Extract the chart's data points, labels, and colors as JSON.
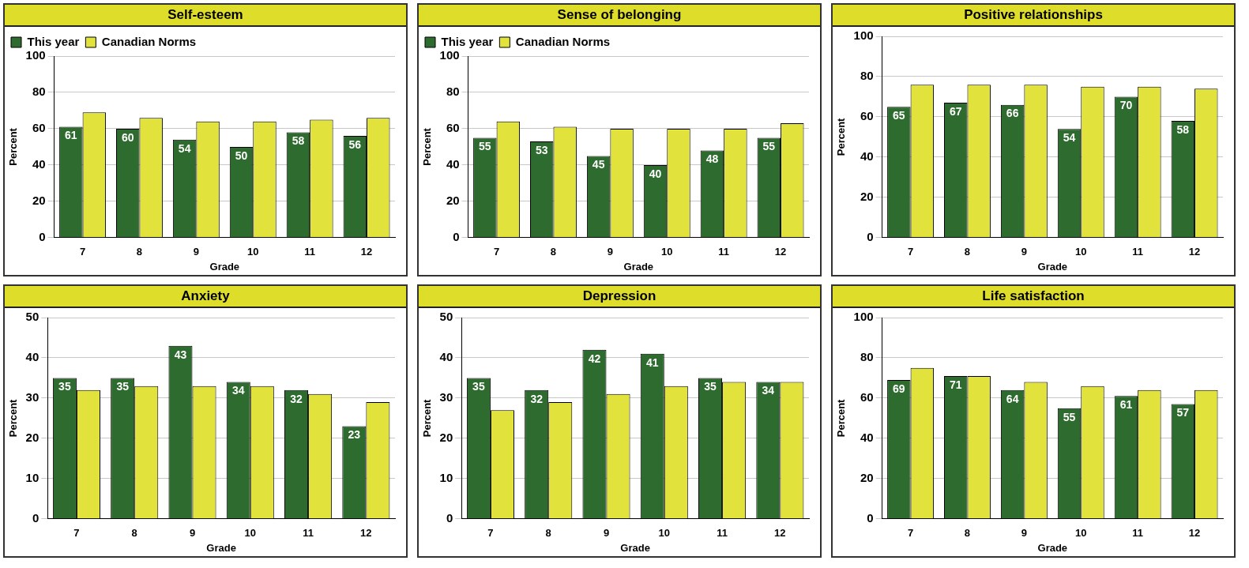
{
  "chart_data": [
    {
      "type": "bar",
      "title": "Self-esteem",
      "xlabel": "Grade",
      "ylabel": "Percent",
      "categories": [
        "7",
        "8",
        "9",
        "10",
        "11",
        "12"
      ],
      "ylim": [
        0,
        100
      ],
      "yticks": [
        0,
        20,
        40,
        60,
        80,
        100
      ],
      "grid": "y",
      "legend": "top",
      "series": [
        {
          "name": "This year",
          "color": "#2e6b2e",
          "values": [
            61,
            60,
            54,
            50,
            58,
            56
          ],
          "value_labels": [
            "61",
            "60",
            "54",
            "50",
            "58",
            "56"
          ]
        },
        {
          "name": "Canadian Norms",
          "color": "#e2e23c",
          "values": [
            69,
            66,
            64,
            64,
            65,
            66
          ]
        }
      ]
    },
    {
      "type": "bar",
      "title": "Sense of belonging",
      "xlabel": "Grade",
      "ylabel": "Percent",
      "categories": [
        "7",
        "8",
        "9",
        "10",
        "11",
        "12"
      ],
      "ylim": [
        0,
        100
      ],
      "yticks": [
        0,
        20,
        40,
        60,
        80,
        100
      ],
      "grid": "y",
      "legend": "top",
      "series": [
        {
          "name": "This year",
          "color": "#2e6b2e",
          "values": [
            55,
            53,
            45,
            40,
            48,
            55
          ],
          "value_labels": [
            "55",
            "53",
            "45",
            "40",
            "48",
            "55"
          ]
        },
        {
          "name": "Canadian Norms",
          "color": "#e2e23c",
          "values": [
            64,
            61,
            60,
            60,
            60,
            63
          ]
        }
      ]
    },
    {
      "type": "bar",
      "title": "Positive relationships",
      "xlabel": "Grade",
      "ylabel": "Percent",
      "categories": [
        "7",
        "8",
        "9",
        "10",
        "11",
        "12"
      ],
      "ylim": [
        0,
        100
      ],
      "yticks": [
        0,
        20,
        40,
        60,
        80,
        100
      ],
      "grid": "y",
      "series": [
        {
          "color": "#2e6b2e",
          "values": [
            65,
            67,
            66,
            54,
            70,
            58
          ],
          "value_labels": [
            "65",
            "67",
            "66",
            "54",
            "70",
            "58"
          ]
        },
        {
          "color": "#e2e23c",
          "values": [
            76,
            76,
            76,
            75,
            75,
            74
          ]
        }
      ]
    },
    {
      "type": "bar",
      "title": "Anxiety",
      "xlabel": "Grade",
      "ylabel": "Percent",
      "categories": [
        "7",
        "8",
        "9",
        "10",
        "11",
        "12"
      ],
      "ylim": [
        0,
        50
      ],
      "yticks": [
        0,
        10,
        20,
        30,
        40,
        50
      ],
      "grid": "y",
      "series": [
        {
          "color": "#2e6b2e",
          "values": [
            35,
            35,
            43,
            34,
            32,
            23
          ],
          "value_labels": [
            "35",
            "35",
            "43",
            "34",
            "32",
            "23"
          ]
        },
        {
          "color": "#e2e23c",
          "values": [
            32,
            33,
            33,
            33,
            31,
            29
          ]
        }
      ]
    },
    {
      "type": "bar",
      "title": "Depression",
      "xlabel": "Grade",
      "ylabel": "Percent",
      "categories": [
        "7",
        "8",
        "9",
        "10",
        "11",
        "12"
      ],
      "ylim": [
        0,
        50
      ],
      "yticks": [
        0,
        10,
        20,
        30,
        40,
        50
      ],
      "grid": "y",
      "series": [
        {
          "color": "#2e6b2e",
          "values": [
            35,
            32,
            42,
            41,
            35,
            34
          ],
          "value_labels": [
            "35",
            "32",
            "42",
            "41",
            "35",
            "34"
          ]
        },
        {
          "color": "#e2e23c",
          "values": [
            27,
            29,
            31,
            33,
            34,
            34
          ]
        }
      ]
    },
    {
      "type": "bar",
      "title": "Life satisfaction",
      "xlabel": "Grade",
      "ylabel": "Percent",
      "categories": [
        "7",
        "8",
        "9",
        "10",
        "11",
        "12"
      ],
      "ylim": [
        0,
        100
      ],
      "yticks": [
        0,
        20,
        40,
        60,
        80,
        100
      ],
      "grid": "y",
      "series": [
        {
          "color": "#2e6b2e",
          "values": [
            69,
            71,
            64,
            55,
            61,
            57
          ],
          "value_labels": [
            "69",
            "71",
            "64",
            "55",
            "61",
            "57"
          ]
        },
        {
          "color": "#e2e23c",
          "values": [
            75,
            71,
            68,
            66,
            64,
            64
          ]
        }
      ]
    }
  ]
}
